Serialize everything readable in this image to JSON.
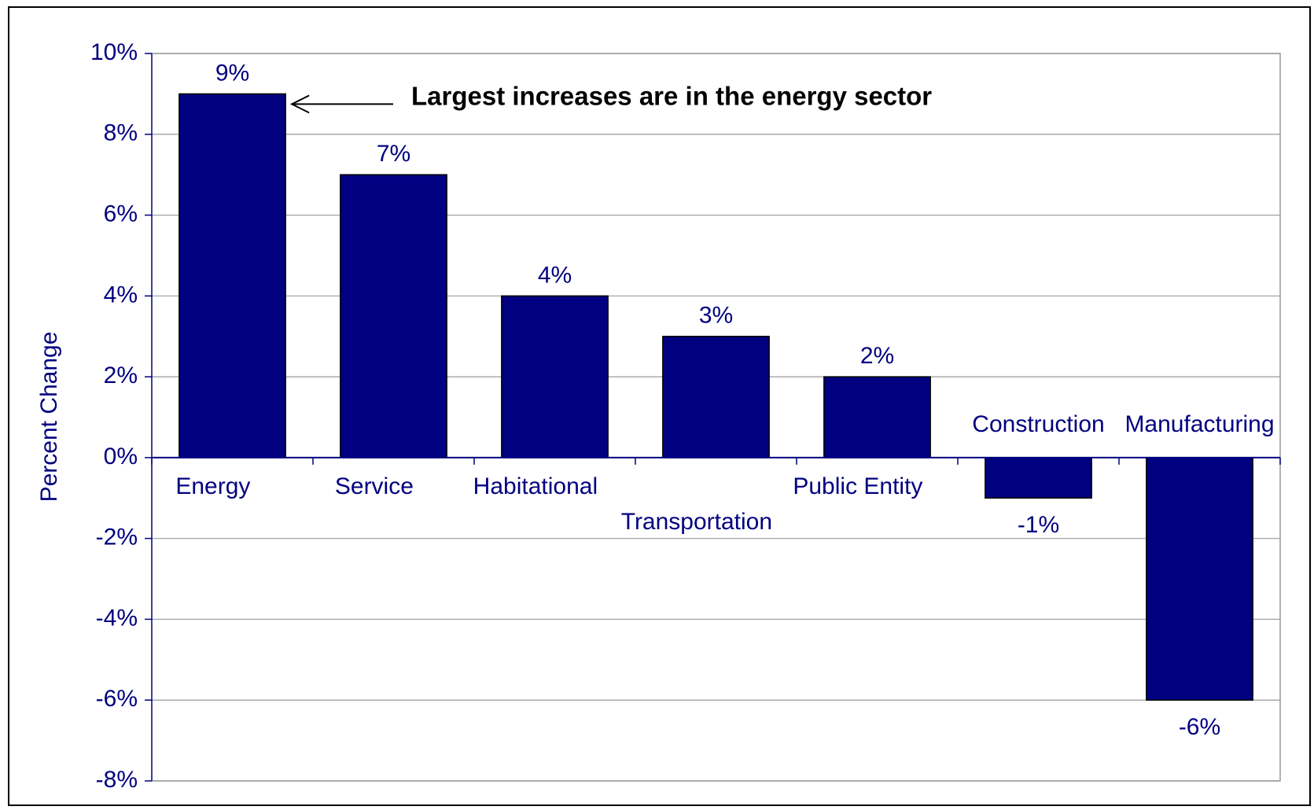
{
  "chart_data": {
    "type": "bar",
    "y_label": "Percent Change",
    "annotation": "Largest increases are in the energy sector",
    "categories": [
      "Energy",
      "Service",
      "Habitational",
      "Transportation",
      "Public Entity",
      "Construction",
      "Manufacturing"
    ],
    "values": [
      9,
      7,
      4,
      3,
      2,
      -1,
      -6
    ],
    "value_labels": [
      "9%",
      "7%",
      "4%",
      "3%",
      "2%",
      "-1%",
      "-6%"
    ],
    "color": "#000080",
    "ylim": [
      -8,
      10
    ],
    "yticks": [
      {
        "value": 10,
        "label": "10%"
      },
      {
        "value": 8,
        "label": "8%"
      },
      {
        "value": 6,
        "label": "6%"
      },
      {
        "value": 4,
        "label": "4%"
      },
      {
        "value": 2,
        "label": "2%"
      },
      {
        "value": 0,
        "label": "0%"
      },
      {
        "value": -2,
        "label": "-2%"
      },
      {
        "value": -4,
        "label": "-4%"
      },
      {
        "value": -6,
        "label": "-6%"
      },
      {
        "value": -8,
        "label": "-8%"
      }
    ],
    "grid": true
  }
}
